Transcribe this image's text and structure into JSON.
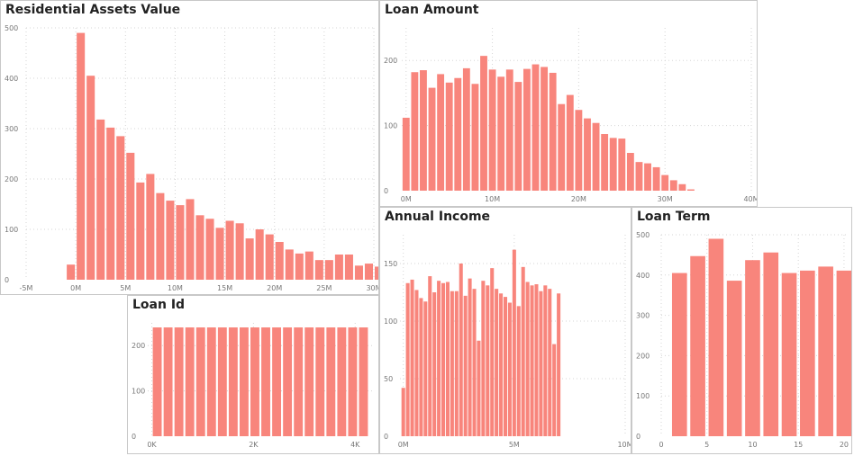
{
  "theme": {
    "bar_color": "#f8857c",
    "grid_color": "#d6d6d6",
    "tick_color": "#777777"
  },
  "chart_data": [
    {
      "id": "residential",
      "type": "bar",
      "title": "Residential Assets Value",
      "bin_start": -1000000,
      "bin_width": 1000000,
      "values": [
        30,
        490,
        405,
        318,
        302,
        285,
        252,
        193,
        210,
        172,
        157,
        148,
        160,
        128,
        121,
        103,
        117,
        112,
        82,
        100,
        90,
        75,
        60,
        52,
        56,
        39,
        39,
        50,
        50,
        28,
        32,
        26,
        13,
        8,
        8,
        5
      ],
      "xlim": [
        -5000000,
        30000000
      ],
      "ylim": [
        0,
        500
      ],
      "x_ticks": [
        -5000000,
        0,
        5000000,
        10000000,
        15000000,
        20000000,
        25000000,
        30000000
      ],
      "x_tick_labels": [
        "-5M",
        "0M",
        "5M",
        "10M",
        "15M",
        "20M",
        "25M",
        "30M"
      ],
      "y_ticks": [
        0,
        100,
        200,
        300,
        400,
        500
      ],
      "y_tick_labels": [
        "0",
        "100",
        "200",
        "300",
        "400",
        "500"
      ]
    },
    {
      "id": "loan-amount",
      "type": "bar",
      "title": "Loan Amount",
      "bin_start": -500000,
      "bin_width": 1000000,
      "values": [
        112,
        182,
        185,
        158,
        179,
        166,
        173,
        188,
        164,
        207,
        186,
        175,
        186,
        167,
        187,
        194,
        190,
        181,
        133,
        147,
        124,
        111,
        104,
        87,
        81,
        80,
        58,
        44,
        42,
        36,
        24,
        16,
        10,
        2
      ],
      "xlim": [
        -500000,
        40000000
      ],
      "ylim": [
        0,
        250
      ],
      "x_ticks": [
        0,
        10000000,
        20000000,
        30000000,
        40000000
      ],
      "x_tick_labels": [
        "0M",
        "10M",
        "20M",
        "30M",
        "40M"
      ],
      "y_ticks": [
        0,
        100,
        200
      ],
      "y_tick_labels": [
        "0",
        "100",
        "200"
      ]
    },
    {
      "id": "loan-id",
      "type": "bar",
      "title": "Loan Id",
      "bin_start": 0,
      "bin_width": 213.5,
      "values": [
        240,
        240,
        240,
        240,
        240,
        240,
        240,
        240,
        240,
        240,
        240,
        240,
        240,
        240,
        240,
        240,
        240,
        240,
        240,
        240
      ],
      "xlim": [
        -80,
        4350
      ],
      "ylim": [
        0,
        250
      ],
      "x_ticks": [
        0,
        2000,
        4000
      ],
      "x_tick_labels": [
        "0K",
        "2K",
        "4K"
      ],
      "y_ticks": [
        0,
        100,
        200
      ],
      "y_tick_labels": [
        "0",
        "100",
        "200"
      ]
    },
    {
      "id": "annual-income",
      "type": "bar",
      "title": "Annual Income",
      "bin_start": -100000,
      "bin_width": 200000,
      "values": [
        42,
        133,
        136,
        127,
        120,
        117,
        139,
        125,
        135,
        133,
        134,
        126,
        126,
        150,
        122,
        137,
        128,
        83,
        135,
        131,
        146,
        128,
        124,
        121,
        116,
        162,
        113,
        147,
        134,
        131,
        132,
        126,
        131,
        128,
        80,
        124
      ],
      "xlim": [
        -150000,
        10000000
      ],
      "ylim": [
        0,
        175
      ],
      "x_ticks": [
        0,
        5000000,
        10000000
      ],
      "x_tick_labels": [
        "0M",
        "5M",
        "10M"
      ],
      "y_ticks": [
        0,
        50,
        100,
        150
      ],
      "y_tick_labels": [
        "0",
        "50",
        "100",
        "150"
      ]
    },
    {
      "id": "loan-term",
      "type": "bar",
      "title": "Loan Term",
      "bin_start": 1,
      "bin_width": 2,
      "values": [
        405,
        447,
        490,
        386,
        437,
        456,
        405,
        411,
        421,
        411
      ],
      "xlim": [
        0,
        20.5
      ],
      "ylim": [
        0,
        500
      ],
      "x_ticks": [
        0,
        5,
        10,
        15,
        20
      ],
      "x_tick_labels": [
        "0",
        "5",
        "10",
        "15",
        "20"
      ],
      "y_ticks": [
        0,
        100,
        200,
        300,
        400,
        500
      ],
      "y_tick_labels": [
        "0",
        "100",
        "200",
        "300",
        "400",
        "500"
      ]
    }
  ]
}
